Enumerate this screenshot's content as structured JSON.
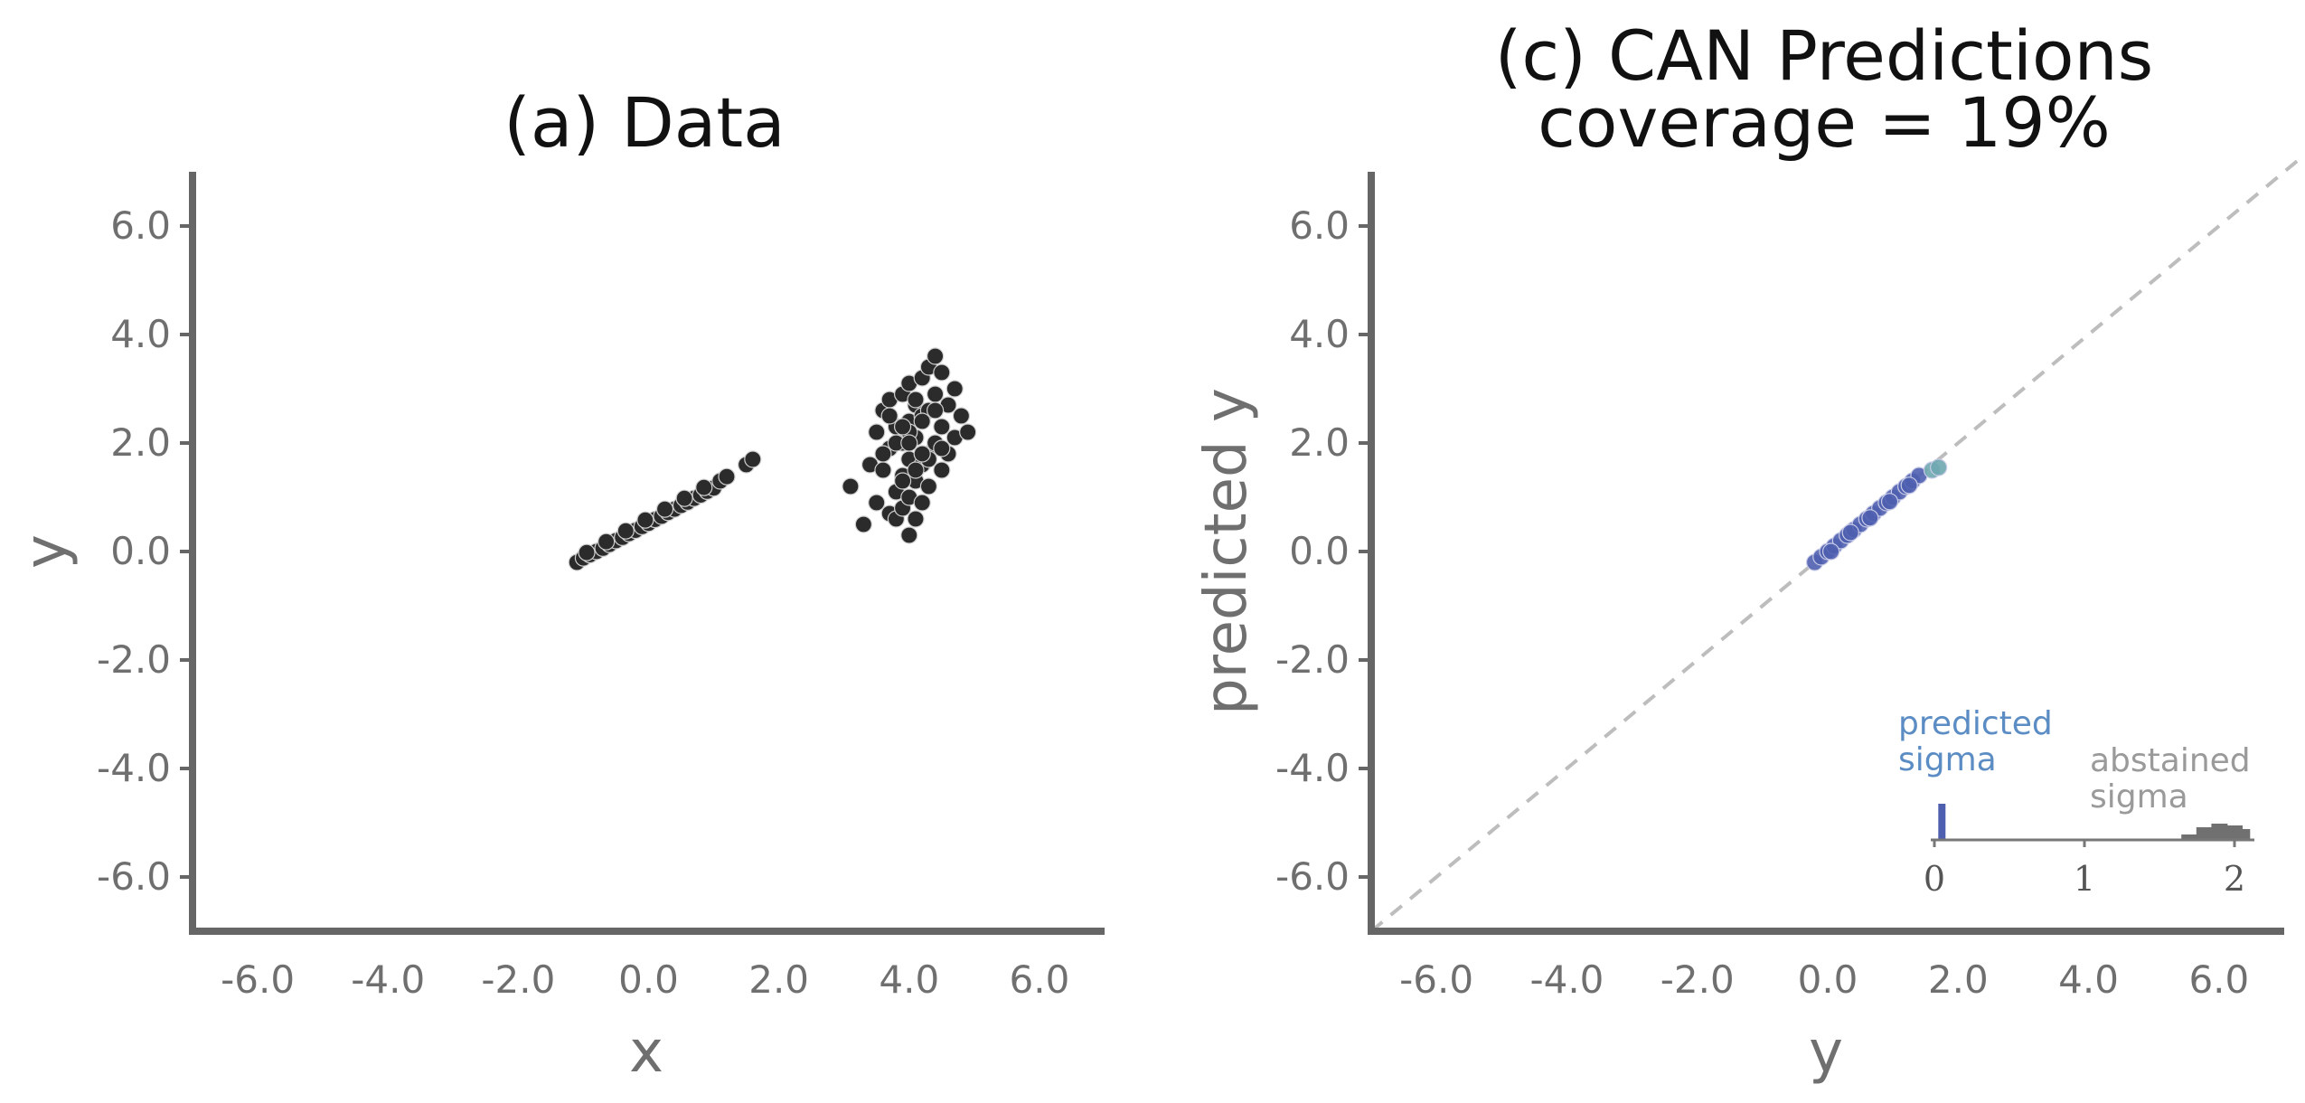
{
  "chart_data": [
    {
      "type": "scatter",
      "title": "(a) Data",
      "xlabel": "x",
      "ylabel": "y",
      "xlim": [
        -7,
        7
      ],
      "ylim": [
        -7,
        7
      ],
      "xticks": [
        "-6.0",
        "-4.0",
        "-2.0",
        "0.0",
        "2.0",
        "4.0",
        "6.0"
      ],
      "yticks": [
        "-6.0",
        "-4.0",
        "-2.0",
        "0.0",
        "2.0",
        "4.0",
        "6.0"
      ],
      "grid": false,
      "point_color": "#2b2b2b",
      "series": [
        {
          "x": [
            -1.1,
            -1.0,
            -0.9,
            -0.8,
            -0.7,
            -0.6,
            -0.5,
            -0.4,
            -0.3,
            -0.2,
            -0.1,
            0.0,
            0.1,
            0.2,
            0.3,
            0.4,
            0.5,
            0.6,
            0.7,
            0.8,
            0.9,
            1.0,
            1.1,
            1.2,
            1.5,
            1.6,
            -0.95,
            -0.65,
            -0.35,
            -0.05,
            0.25,
            0.55,
            0.85
          ],
          "y": [
            -0.2,
            -0.12,
            -0.06,
            0.0,
            0.06,
            0.13,
            0.2,
            0.26,
            0.33,
            0.39,
            0.46,
            0.52,
            0.59,
            0.65,
            0.72,
            0.78,
            0.85,
            0.91,
            0.98,
            1.04,
            1.11,
            1.17,
            1.3,
            1.38,
            1.6,
            1.7,
            -0.02,
            0.18,
            0.38,
            0.58,
            0.78,
            0.98,
            1.18
          ]
        },
        {
          "x": [
            3.1,
            3.3,
            3.4,
            3.5,
            3.5,
            3.6,
            3.6,
            3.7,
            3.7,
            3.7,
            3.8,
            3.8,
            3.8,
            3.9,
            3.9,
            3.9,
            3.9,
            4.0,
            4.0,
            4.0,
            4.0,
            4.0,
            4.1,
            4.1,
            4.1,
            4.1,
            4.2,
            4.2,
            4.2,
            4.2,
            4.3,
            4.3,
            4.3,
            4.3,
            4.4,
            4.4,
            4.4,
            4.5,
            4.5,
            4.5,
            4.6,
            4.6,
            4.7,
            4.7,
            4.8,
            4.9,
            3.6,
            3.8,
            4.0,
            4.2,
            4.4,
            3.9,
            4.1,
            4.3,
            3.7,
            4.5,
            4.0,
            4.2,
            3.9,
            4.1
          ],
          "y": [
            1.2,
            0.5,
            1.6,
            2.2,
            0.9,
            1.5,
            2.6,
            0.7,
            1.9,
            2.8,
            1.1,
            2.3,
            0.6,
            1.4,
            2.0,
            2.9,
            0.8,
            1.0,
            1.7,
            2.4,
            3.1,
            0.3,
            1.3,
            2.1,
            2.7,
            0.6,
            1.6,
            2.5,
            3.2,
            0.9,
            1.8,
            2.6,
            3.4,
            1.2,
            2.0,
            2.9,
            3.6,
            1.5,
            2.3,
            3.3,
            1.8,
            2.7,
            2.1,
            3.0,
            2.5,
            2.2,
            1.8,
            2.0,
            2.2,
            2.4,
            2.6,
            1.3,
            1.5,
            1.7,
            2.5,
            1.9,
            2.0,
            1.8,
            2.3,
            2.8
          ]
        }
      ]
    },
    {
      "type": "scatter",
      "title": "(c) CAN Predictions",
      "subtitle": "coverage = 19%",
      "xlabel": "y",
      "ylabel": "predicted y",
      "xlim": [
        -7,
        7
      ],
      "ylim": [
        -7,
        7
      ],
      "xticks": [
        "-6.0",
        "-4.0",
        "-2.0",
        "0.0",
        "2.0",
        "4.0",
        "6.0"
      ],
      "yticks": [
        "-6.0",
        "-4.0",
        "-2.0",
        "0.0",
        "2.0",
        "4.0",
        "6.0"
      ],
      "grid": false,
      "reference_line": "y = x (dashed)",
      "point_colors": [
        "#4f5fb0",
        "#6fa9b0"
      ],
      "series": [
        {
          "x": [
            -0.2,
            -0.1,
            0.0,
            0.1,
            0.2,
            0.3,
            0.4,
            0.5,
            0.6,
            0.7,
            0.8,
            0.9,
            1.0,
            1.1,
            1.2,
            1.3,
            1.4,
            1.6,
            1.7,
            0.05,
            0.35,
            0.65,
            0.95,
            1.25
          ],
          "y": [
            -0.2,
            -0.1,
            0.0,
            0.1,
            0.2,
            0.3,
            0.4,
            0.5,
            0.6,
            0.7,
            0.8,
            0.9,
            1.0,
            1.1,
            1.2,
            1.3,
            1.4,
            1.5,
            1.55,
            0.0,
            0.35,
            0.62,
            0.92,
            1.22
          ]
        }
      ],
      "inset_histogram": {
        "labels": [
          "predicted\nsigma",
          "abstained\nsigma"
        ],
        "xticks": [
          "0",
          "1",
          "2"
        ],
        "xlim": [
          0,
          2.1
        ],
        "predicted_sigma_bins": [
          {
            "x": 0.05,
            "count": 1.0
          }
        ],
        "abstained_sigma_bins": [
          {
            "x": 1.6,
            "count": 0.03
          },
          {
            "x": 1.7,
            "count": 0.15
          },
          {
            "x": 1.8,
            "count": 0.35
          },
          {
            "x": 1.9,
            "count": 0.45
          },
          {
            "x": 2.0,
            "count": 0.4
          },
          {
            "x": 2.05,
            "count": 0.3
          }
        ],
        "colors": {
          "predicted": "#4f5fb0",
          "abstained": "#707070"
        }
      }
    }
  ]
}
